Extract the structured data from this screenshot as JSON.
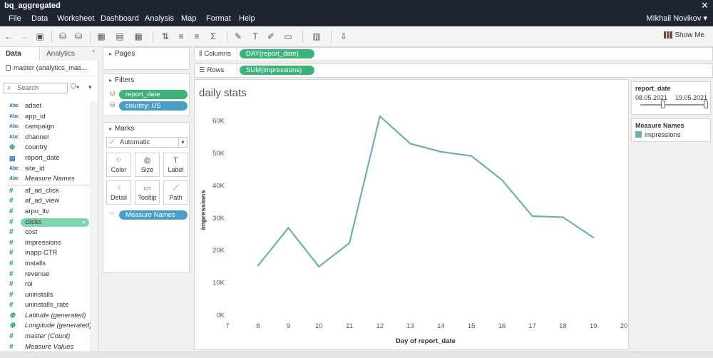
{
  "app": {
    "title": "bq_aggregated",
    "close_glyph": "✕"
  },
  "menu": {
    "items": [
      "File",
      "Data",
      "Worksheet",
      "Dashboard",
      "Analysis",
      "Map",
      "Format",
      "Help"
    ],
    "user": "MIkhail Novikov ▾"
  },
  "toolbar": {
    "show_me": "Show Me"
  },
  "data_pane": {
    "tab_data": "Data",
    "tab_analytics": "Analytics",
    "datasource": "master (analytics_mas...",
    "search_placeholder": "Search",
    "dimensions": [
      {
        "type": "Abc",
        "label": "adset"
      },
      {
        "type": "Abc",
        "label": "app_id"
      },
      {
        "type": "Abc",
        "label": "campaign"
      },
      {
        "type": "Abc",
        "label": "channel"
      },
      {
        "type": "geo",
        "label": "country"
      },
      {
        "type": "cal",
        "label": "report_date"
      },
      {
        "type": "Abc",
        "label": "site_id"
      },
      {
        "type": "Abc",
        "label": "Measure Names",
        "italic": true
      }
    ],
    "measures": [
      {
        "label": "af_ad_click"
      },
      {
        "label": "af_ad_view"
      },
      {
        "label": "arpu_ltv"
      },
      {
        "label": "clicks",
        "selected": true
      },
      {
        "label": "cost"
      },
      {
        "label": "impressions"
      },
      {
        "label": "inapp CTR"
      },
      {
        "label": "installs"
      },
      {
        "label": "revenue"
      },
      {
        "label": "roi"
      },
      {
        "label": "uninstalls"
      },
      {
        "label": "uninstalls_rate"
      },
      {
        "label": "Latitude (generated)",
        "italic": true,
        "geo": true
      },
      {
        "label": "Longitude (generated)",
        "italic": true,
        "geo": true
      },
      {
        "label": "master (Count)",
        "italic": true
      },
      {
        "label": "Measure Values",
        "italic": true
      }
    ]
  },
  "pages": {
    "title": "Pages"
  },
  "filters": {
    "title": "Filters",
    "items": [
      "report_date",
      "country: US"
    ]
  },
  "marks": {
    "title": "Marks",
    "type": "Automatic",
    "buttons": [
      "Color",
      "Size",
      "Label",
      "Detail",
      "Tooltip",
      "Path"
    ],
    "color_pill": "Measure Names"
  },
  "shelves": {
    "columns_label": "Columns",
    "columns_pill": "DAY(report_date)",
    "rows_label": "Rows",
    "rows_pill": "SUM(impressions)"
  },
  "viz": {
    "title": "daily stats"
  },
  "date_filter": {
    "title": "report_date",
    "start": "08.05.2021",
    "end": "19.05.2021"
  },
  "legend": {
    "title": "Measure Names",
    "item": "impressions"
  },
  "colors": {
    "line": "#6fb0ac",
    "green_pill": "#3db27a",
    "blue_pill": "#4d9ec4"
  },
  "chart_data": {
    "type": "line",
    "x": [
      8,
      9,
      10,
      11,
      12,
      13,
      14,
      15,
      16,
      17,
      18,
      19
    ],
    "series": [
      {
        "name": "impressions",
        "values": [
          15300,
          27000,
          15000,
          22300,
          61500,
          53000,
          50500,
          49200,
          41800,
          30600,
          30300,
          24000
        ]
      }
    ],
    "xlabel": "Day of report_date",
    "ylabel": "impressions",
    "xlim": [
      7,
      20
    ],
    "ylim": [
      0,
      65000
    ],
    "x_ticks": [
      "7",
      "8",
      "9",
      "10",
      "11",
      "12",
      "13",
      "14",
      "15",
      "16",
      "17",
      "18",
      "19",
      "20"
    ],
    "y_ticks": [
      "0K",
      "10K",
      "20K",
      "30K",
      "40K",
      "50K",
      "60K"
    ],
    "grid": false,
    "legend": "right"
  }
}
